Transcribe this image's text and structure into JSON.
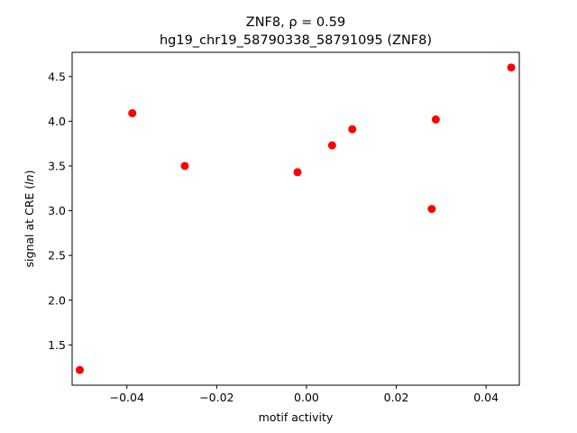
{
  "chart_data": {
    "type": "scatter",
    "title_line1": "ZNF8, ρ = 0.59",
    "title_line2": "hg19_chr19_58790338_58791095 (ZNF8)",
    "xlabel": "motif activity",
    "ylabel_prefix": "signal at CRE (",
    "ylabel_italic": "ln",
    "ylabel_suffix": ")",
    "xlim": [
      -0.0522,
      0.0474
    ],
    "ylim": [
      1.05,
      4.77
    ],
    "x_ticks": [
      -0.04,
      -0.02,
      0.0,
      0.02,
      0.04
    ],
    "x_tick_labels": [
      "−0.04",
      "−0.02",
      "0.00",
      "0.02",
      "0.04"
    ],
    "y_ticks": [
      1.5,
      2.0,
      2.5,
      3.0,
      3.5,
      4.0,
      4.5
    ],
    "y_tick_labels": [
      "1.5",
      "2.0",
      "2.5",
      "3.0",
      "3.5",
      "4.0",
      "4.5"
    ],
    "grid": false,
    "marker_color": "#ff0000",
    "points": [
      {
        "x": -0.0505,
        "y": 1.22
      },
      {
        "x": -0.0388,
        "y": 4.09
      },
      {
        "x": -0.0271,
        "y": 3.5
      },
      {
        "x": -0.002,
        "y": 3.43
      },
      {
        "x": 0.0057,
        "y": 3.73
      },
      {
        "x": 0.0102,
        "y": 3.91
      },
      {
        "x": 0.0279,
        "y": 3.02
      },
      {
        "x": 0.0288,
        "y": 4.02
      },
      {
        "x": 0.0456,
        "y": 4.6
      }
    ]
  }
}
